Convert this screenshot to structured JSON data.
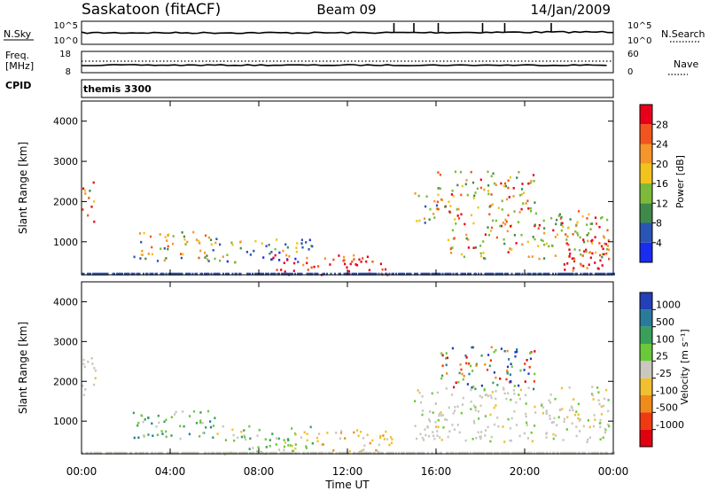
{
  "header": {
    "station": "Saskatoon (fitACF)",
    "beam": "Beam 09",
    "date": "14/Jan/2009"
  },
  "noise_panel": {
    "left_label": "N.Sky",
    "right_label": "N.Search",
    "left_ticks": [
      "10^5",
      "10^0"
    ],
    "right_ticks": [
      "10^5",
      "10^0"
    ]
  },
  "freq_panel": {
    "left_label_1": "Freq.",
    "left_label_2": "[MHz]",
    "right_label": "Nave",
    "left_ticks": [
      "18",
      "8"
    ],
    "right_ticks": [
      "60",
      "0"
    ]
  },
  "cpid_panel": {
    "label": "CPID",
    "program": "themis 3300"
  },
  "axes": {
    "ylabel": "Slant Range [km]",
    "xlabel": "Time UT",
    "y_ticks": [
      "1000",
      "2000",
      "3000",
      "4000"
    ],
    "x_ticks": [
      "00:00",
      "04:00",
      "08:00",
      "12:00",
      "16:00",
      "20:00",
      "00:00"
    ]
  },
  "power_scale": {
    "label": "Power [dB]",
    "ticks": [
      "4",
      "8",
      "12",
      "16",
      "20",
      "24",
      "28"
    ],
    "colors": [
      "#1a2cf0",
      "#2b55b4",
      "#3f8a4a",
      "#7dba3a",
      "#f2c21e",
      "#f4962a",
      "#f2541d",
      "#e8001a"
    ]
  },
  "velocity_scale": {
    "label": "Velocity [m s⁻¹]",
    "ticks": [
      "1000",
      "500",
      "100",
      "25",
      "-25",
      "-100",
      "-500",
      "-1000"
    ],
    "colors": [
      "#2440b8",
      "#2a7a9a",
      "#39a05a",
      "#6bc83a",
      "#c8c8c0",
      "#f0c030",
      "#f08a1a",
      "#f03a10",
      "#e00010"
    ]
  },
  "chart_data": {
    "type": "heatmap",
    "x_unit": "hours UT",
    "xlim": [
      0,
      24
    ],
    "ylim": [
      180,
      4500
    ],
    "power_panel": {
      "regions": [
        {
          "t": [
            0.0,
            0.55
          ],
          "r": [
            1500,
            2600
          ],
          "level": "16-28 dB"
        },
        {
          "t": [
            2.2,
            6.0
          ],
          "r": [
            550,
            1300
          ],
          "level": "8-24 dB"
        },
        {
          "t": [
            6.0,
            10.5
          ],
          "r": [
            500,
            1100
          ],
          "level": "4-20 dB"
        },
        {
          "t": [
            8.5,
            13.8
          ],
          "r": [
            180,
            700
          ],
          "level": "24-28 dB"
        },
        {
          "t": [
            15.0,
            16.0
          ],
          "r": [
            1500,
            2300
          ],
          "level": "8-24 dB"
        },
        {
          "t": [
            16.0,
            20.5
          ],
          "r": [
            1800,
            2800
          ],
          "level": "12-28 dB"
        },
        {
          "t": [
            16.5,
            23.8
          ],
          "r": [
            600,
            1800
          ],
          "level": "12-28 dB"
        },
        {
          "t": [
            21.5,
            23.8
          ],
          "r": [
            300,
            1200
          ],
          "level": "24-28 dB"
        }
      ]
    },
    "velocity_panel": {
      "regions": [
        {
          "t": [
            0.0,
            0.6
          ],
          "r": [
            1500,
            2700
          ],
          "level": "-25 to 25"
        },
        {
          "t": [
            2.2,
            6.0
          ],
          "r": [
            550,
            1300
          ],
          "level": "100 to 500"
        },
        {
          "t": [
            6.0,
            10.5
          ],
          "r": [
            200,
            900
          ],
          "level": "25 to 100"
        },
        {
          "t": [
            10.0,
            14.0
          ],
          "r": [
            200,
            800
          ],
          "level": "-100 to -25"
        },
        {
          "t": [
            15.0,
            23.8
          ],
          "r": [
            500,
            1900
          ],
          "level": "-25 to 25"
        },
        {
          "t": [
            16.2,
            20.5
          ],
          "r": [
            1800,
            2900
          ],
          "level": "-1000 to 500"
        }
      ]
    }
  }
}
